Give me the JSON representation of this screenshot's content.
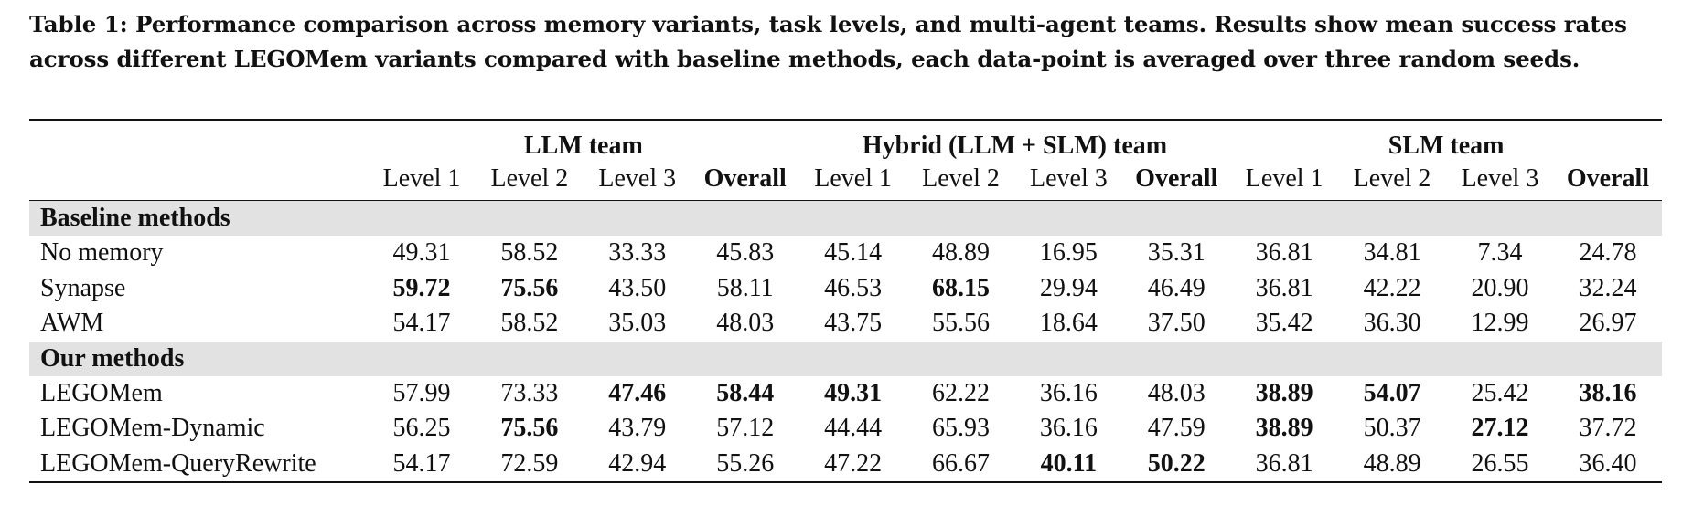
{
  "caption": {
    "line1": "Table 1: Performance comparison across memory variants, task levels, and multi-agent teams. Results show mean success rates",
    "line2": "across different LEGOMem variants compared with baseline methods, each data-point is averaged over three random seeds."
  },
  "table": {
    "groups": [
      "LLM team",
      "Hybrid (LLM + SLM) team",
      "SLM team"
    ],
    "columns": [
      "Level 1",
      "Level 2",
      "Level 3",
      "Overall",
      "Level 1",
      "Level 2",
      "Level 3",
      "Overall",
      "Level 1",
      "Level 2",
      "Level 3",
      "Overall"
    ],
    "sections": [
      {
        "title": "Baseline methods",
        "rows": [
          {
            "name": "No memory",
            "values": [
              "49.31",
              "58.52",
              "33.33",
              "45.83",
              "45.14",
              "48.89",
              "16.95",
              "35.31",
              "36.81",
              "34.81",
              "7.34",
              "24.78"
            ],
            "bold": [
              false,
              false,
              false,
              false,
              false,
              false,
              false,
              false,
              false,
              false,
              false,
              false
            ]
          },
          {
            "name": "Synapse",
            "values": [
              "59.72",
              "75.56",
              "43.50",
              "58.11",
              "46.53",
              "68.15",
              "29.94",
              "46.49",
              "36.81",
              "42.22",
              "20.90",
              "32.24"
            ],
            "bold": [
              true,
              true,
              false,
              false,
              false,
              true,
              false,
              false,
              false,
              false,
              false,
              false
            ]
          },
          {
            "name": "AWM",
            "values": [
              "54.17",
              "58.52",
              "35.03",
              "48.03",
              "43.75",
              "55.56",
              "18.64",
              "37.50",
              "35.42",
              "36.30",
              "12.99",
              "26.97"
            ],
            "bold": [
              false,
              false,
              false,
              false,
              false,
              false,
              false,
              false,
              false,
              false,
              false,
              false
            ]
          }
        ]
      },
      {
        "title": "Our methods",
        "rows": [
          {
            "name": "LEGOMem",
            "values": [
              "57.99",
              "73.33",
              "47.46",
              "58.44",
              "49.31",
              "62.22",
              "36.16",
              "48.03",
              "38.89",
              "54.07",
              "25.42",
              "38.16"
            ],
            "bold": [
              false,
              false,
              true,
              true,
              true,
              false,
              false,
              false,
              true,
              true,
              false,
              true
            ]
          },
          {
            "name": "LEGOMem-Dynamic",
            "values": [
              "56.25",
              "75.56",
              "43.79",
              "57.12",
              "44.44",
              "65.93",
              "36.16",
              "47.59",
              "38.89",
              "50.37",
              "27.12",
              "37.72"
            ],
            "bold": [
              false,
              true,
              false,
              false,
              false,
              false,
              false,
              false,
              true,
              false,
              true,
              false
            ]
          },
          {
            "name": "LEGOMem-QueryRewrite",
            "values": [
              "54.17",
              "72.59",
              "42.94",
              "55.26",
              "47.22",
              "66.67",
              "40.11",
              "50.22",
              "36.81",
              "48.89",
              "26.55",
              "36.40"
            ],
            "bold": [
              false,
              false,
              false,
              false,
              false,
              false,
              true,
              true,
              false,
              false,
              false,
              false
            ]
          }
        ]
      }
    ]
  }
}
